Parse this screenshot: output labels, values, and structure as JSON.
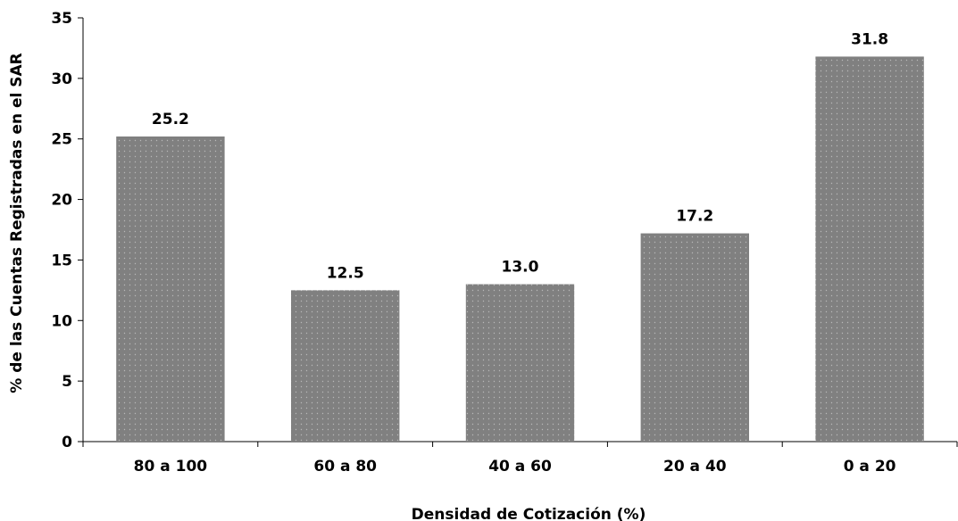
{
  "chart_data": {
    "type": "bar",
    "categories": [
      "80 a 100",
      "60 a 80",
      "40 a 60",
      "20 a 40",
      "0 a 20"
    ],
    "values": [
      25.2,
      12.5,
      13.0,
      17.2,
      31.8
    ],
    "value_labels": [
      "25.2",
      "12.5",
      "13.0",
      "17.2",
      "31.8"
    ],
    "xlabel": "Densidad de Cotización (%)",
    "ylabel": "% de las Cuentas Registradas en el SAR",
    "ylim": [
      0,
      35
    ],
    "yticks": [
      0,
      5,
      10,
      15,
      20,
      25,
      30,
      35
    ],
    "grid": false,
    "legend": "none",
    "bar_color": "#808080",
    "bar_pattern_dot_color": "#b8b8b8"
  }
}
